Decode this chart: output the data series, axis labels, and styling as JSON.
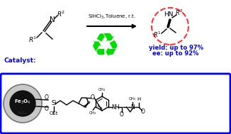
{
  "bg_color": "#ffffff",
  "recycle_color": "#00dd00",
  "text_color_blue": "#0000ff",
  "text_color_black": "#000000",
  "catalyst_box_color": "#0000ff",
  "fe3o4_color": "#111111",
  "sio2_color": "#c8c8c8",
  "dashed_circle_color": "#ff3333",
  "reaction_condition": "SiHCl$_3$,Toluene, r.t.",
  "yield_text": "yield: up to 97%",
  "ee_text": "ee: up to 92%",
  "catalyst_label": "Catalyst:",
  "figsize": [
    3.26,
    1.89
  ],
  "dpi": 100
}
